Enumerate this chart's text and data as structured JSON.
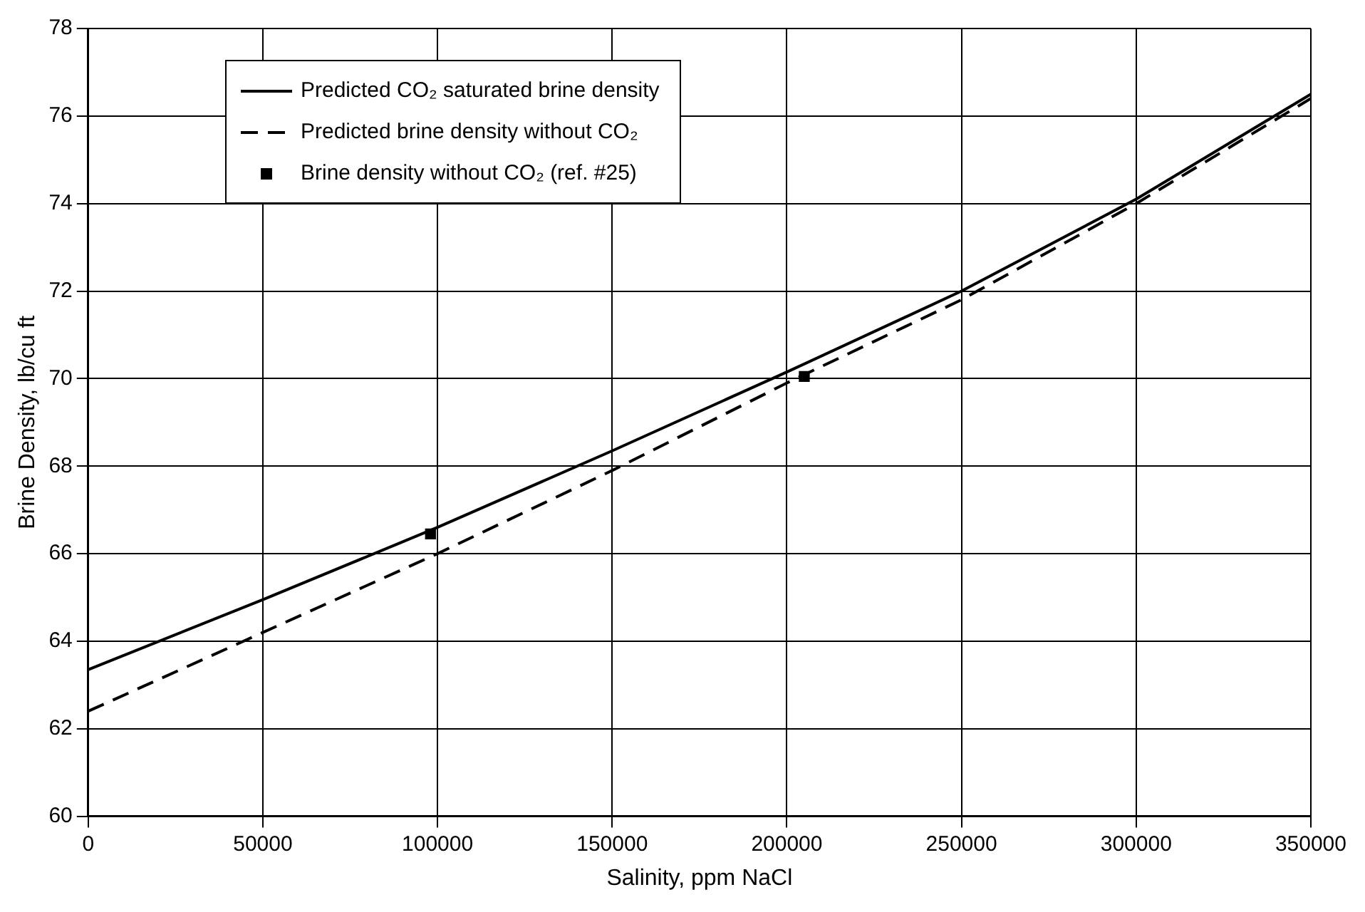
{
  "chart_data": {
    "type": "line",
    "xlabel": "Salinity, ppm NaCl",
    "ylabel": "Brine Density, lb/cu ft",
    "xlim": [
      0,
      350000
    ],
    "xticks": [
      0,
      50000,
      100000,
      150000,
      200000,
      250000,
      300000,
      350000
    ],
    "ylim": [
      60,
      78
    ],
    "yticks": [
      60,
      62,
      64,
      66,
      68,
      70,
      72,
      74,
      76,
      78
    ],
    "grid": true,
    "legend": "top left",
    "series": [
      {
        "name": "Predicted CO₂ saturated brine density",
        "color": "#000000",
        "line_style": "solid",
        "marker": "none",
        "x": [
          0,
          50000,
          100000,
          150000,
          200000,
          250000,
          300000,
          350000
        ],
        "values": [
          63.35,
          64.95,
          66.6,
          68.35,
          70.15,
          72.0,
          74.1,
          76.5
        ]
      },
      {
        "name": "Predicted brine density without CO₂",
        "color": "#000000",
        "line_style": "dashed",
        "marker": "none",
        "x": [
          0,
          50000,
          100000,
          150000,
          200000,
          250000,
          300000,
          350000
        ],
        "values": [
          62.4,
          64.2,
          66.0,
          67.9,
          69.9,
          71.8,
          74.0,
          76.4
        ]
      },
      {
        "name": "Brine density without CO₂ (ref. #25)",
        "color": "#000000",
        "type": "scatter",
        "marker": "square",
        "x": [
          98000,
          205000
        ],
        "values": [
          66.45,
          70.05
        ]
      }
    ]
  }
}
